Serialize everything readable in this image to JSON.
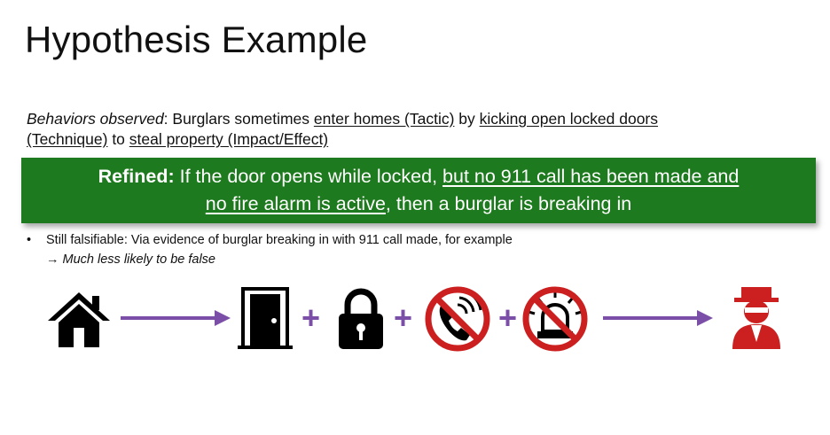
{
  "slide": {
    "title": "Hypothesis Example"
  },
  "behaviors": {
    "label": "Behaviors observed",
    "sep": ": Burglars sometimes ",
    "tactic": "enter homes (Tactic)",
    "by": " by ",
    "technique_line1": "kicking open locked doors",
    "technique_line2": "(Technique)",
    "to": " to ",
    "impact": "steal property (Impact/Effect)"
  },
  "refined": {
    "label": "Refined:",
    "text_a": " If the door opens while locked, ",
    "underline_1": "but no 911 call has been made and",
    "underline_2": "no fire alarm is active",
    "text_b": ", then a burglar is breaking in"
  },
  "bullets": {
    "bullet_char": "•",
    "falsifiable": "Still falsifiable: Via evidence of burglar breaking in with 911 call made, for example",
    "arrow": "→",
    "less_likely": "Much less likely to be false"
  },
  "flow": {
    "plus": "+",
    "icons": [
      "house-icon",
      "door-icon",
      "padlock-icon",
      "no-phone-icon",
      "no-alarm-icon",
      "burglar-icon"
    ],
    "colors": {
      "arrow": "#7b4fa8",
      "no_sign": "#cc1f1f",
      "burglar": "#cc1f1f",
      "banner": "#1e7a1e"
    }
  }
}
